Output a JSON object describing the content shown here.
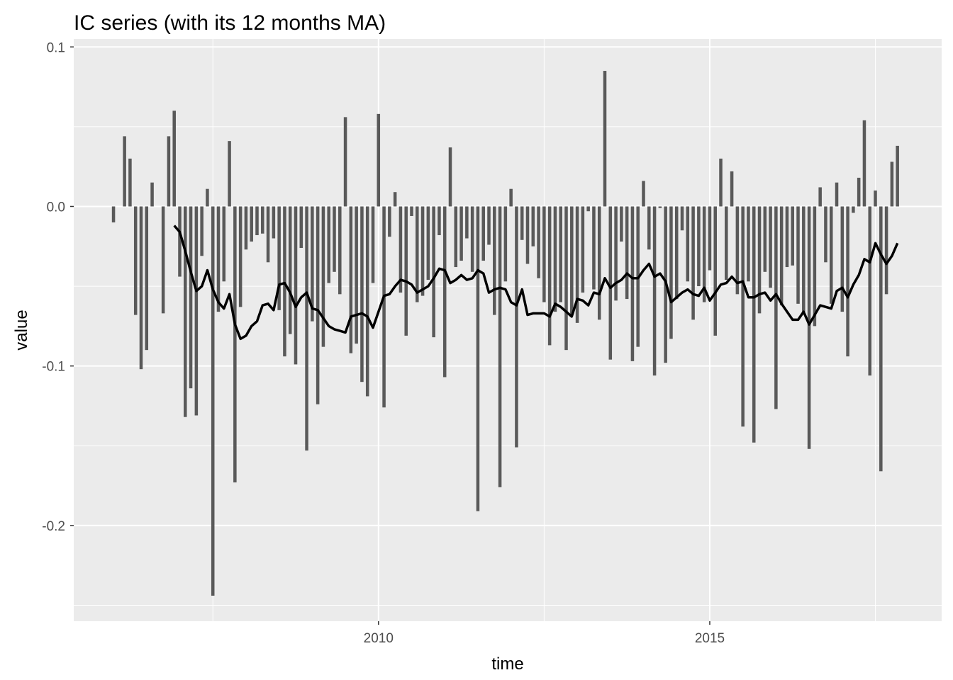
{
  "chart_data": {
    "type": "bar",
    "title": "IC series (with its 12 months MA)",
    "xlabel": "time",
    "ylabel": "value",
    "xlim": [
      2005.4,
      2018.5
    ],
    "ylim": [
      -0.26,
      0.105
    ],
    "x_ticks": [
      2010,
      2015
    ],
    "x_tick_labels": [
      "2010",
      "2015"
    ],
    "y_ticks": [
      0.1,
      0.0,
      -0.1,
      -0.2
    ],
    "y_tick_labels": [
      "0.1",
      "0.0",
      "-0.1",
      "-0.2"
    ],
    "grid": true,
    "legend": "none",
    "colors": {
      "panel": "#ebebeb",
      "grid": "#ffffff",
      "bar": "#595959",
      "ma_line": "#000000"
    },
    "series": [
      {
        "kind": "bar",
        "x_start": 2006.0,
        "step": 0.08333,
        "values": [
          -0.01,
          0.0,
          0.044,
          0.03,
          -0.068,
          -0.102,
          -0.09,
          0.015,
          0.0,
          -0.067,
          0.044,
          0.06,
          -0.044,
          -0.132,
          -0.114,
          -0.131,
          -0.031,
          0.011,
          -0.244,
          -0.066,
          -0.047,
          0.041,
          -0.173,
          -0.063,
          -0.027,
          -0.022,
          -0.018,
          -0.017,
          -0.035,
          -0.02,
          -0.065,
          -0.094,
          -0.08,
          -0.099,
          -0.026,
          -0.153,
          -0.072,
          -0.124,
          -0.088,
          -0.048,
          -0.041,
          -0.055,
          0.056,
          -0.092,
          -0.086,
          -0.11,
          -0.119,
          -0.048,
          0.058,
          -0.126,
          -0.019,
          0.009,
          -0.054,
          -0.081,
          -0.006,
          -0.06,
          -0.056,
          -0.046,
          -0.082,
          -0.018,
          -0.107,
          0.037,
          -0.038,
          -0.034,
          -0.02,
          -0.041,
          -0.191,
          -0.034,
          -0.024,
          -0.068,
          -0.176,
          -0.047,
          0.011,
          -0.151,
          -0.021,
          -0.036,
          -0.025,
          -0.045,
          -0.06,
          -0.087,
          -0.066,
          -0.06,
          -0.09,
          -0.068,
          -0.073,
          -0.054,
          -0.003,
          -0.052,
          -0.071,
          0.085,
          -0.096,
          -0.059,
          -0.022,
          -0.058,
          -0.097,
          -0.088,
          0.016,
          -0.027,
          -0.106,
          -0.001,
          -0.098,
          -0.083,
          -0.058,
          -0.015,
          -0.047,
          -0.071,
          -0.05,
          -0.06,
          -0.04,
          -0.081,
          0.03,
          -0.046,
          0.022,
          -0.055,
          -0.138,
          -0.047,
          -0.148,
          -0.067,
          -0.041,
          -0.051,
          -0.127,
          -0.062,
          -0.038,
          -0.037,
          -0.061,
          -0.066,
          -0.152,
          -0.075,
          0.012,
          -0.035,
          -0.061,
          0.015,
          -0.066,
          -0.094,
          -0.004,
          0.018,
          0.054,
          -0.106,
          0.01,
          -0.166,
          -0.055,
          0.028,
          0.038
        ]
      },
      {
        "kind": "line",
        "name": "12 months MA",
        "x_start": 2006.917,
        "step": 0.08333,
        "values": [
          -0.012,
          -0.016,
          -0.028,
          -0.041,
          -0.053,
          -0.05,
          -0.04,
          -0.052,
          -0.06,
          -0.064,
          -0.055,
          -0.074,
          -0.083,
          -0.081,
          -0.075,
          -0.072,
          -0.062,
          -0.061,
          -0.065,
          -0.049,
          -0.048,
          -0.054,
          -0.063,
          -0.057,
          -0.054,
          -0.064,
          -0.065,
          -0.07,
          -0.075,
          -0.077,
          -0.078,
          -0.079,
          -0.069,
          -0.068,
          -0.067,
          -0.069,
          -0.076,
          -0.066,
          -0.056,
          -0.055,
          -0.05,
          -0.046,
          -0.047,
          -0.049,
          -0.054,
          -0.052,
          -0.05,
          -0.045,
          -0.039,
          -0.04,
          -0.048,
          -0.046,
          -0.043,
          -0.046,
          -0.045,
          -0.04,
          -0.042,
          -0.054,
          -0.052,
          -0.051,
          -0.052,
          -0.06,
          -0.062,
          -0.052,
          -0.068,
          -0.067,
          -0.067,
          -0.067,
          -0.069,
          -0.061,
          -0.063,
          -0.066,
          -0.069,
          -0.058,
          -0.059,
          -0.062,
          -0.054,
          -0.055,
          -0.045,
          -0.051,
          -0.048,
          -0.046,
          -0.042,
          -0.045,
          -0.045,
          -0.04,
          -0.036,
          -0.044,
          -0.042,
          -0.047,
          -0.06,
          -0.057,
          -0.054,
          -0.052,
          -0.055,
          -0.056,
          -0.051,
          -0.059,
          -0.054,
          -0.049,
          -0.048,
          -0.044,
          -0.048,
          -0.047,
          -0.057,
          -0.057,
          -0.055,
          -0.054,
          -0.059,
          -0.055,
          -0.061,
          -0.066,
          -0.071,
          -0.071,
          -0.066,
          -0.074,
          -0.068,
          -0.062,
          -0.063,
          -0.064,
          -0.053,
          -0.051,
          -0.057,
          -0.049,
          -0.043,
          -0.033,
          -0.035,
          -0.023,
          -0.03,
          -0.036,
          -0.031,
          -0.023
        ]
      }
    ]
  }
}
